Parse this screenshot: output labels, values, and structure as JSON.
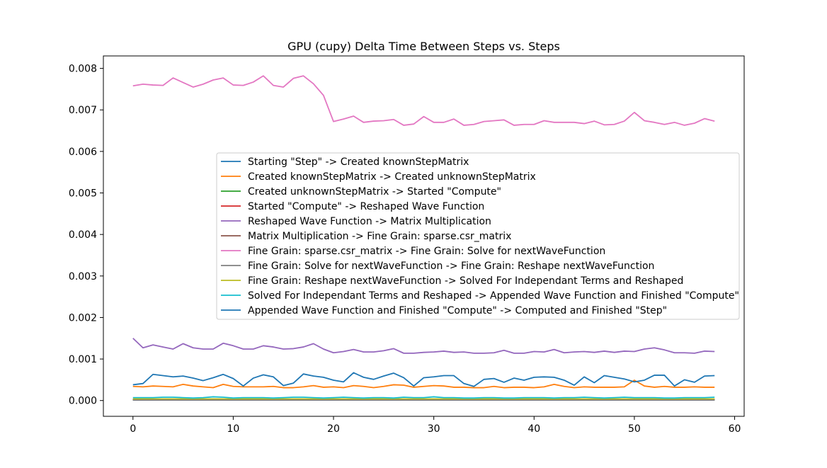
{
  "chart_data": {
    "type": "line",
    "title": "GPU (cupy) Delta Time Between Steps vs. Steps",
    "xlabel": "",
    "ylabel": "",
    "xlim": [
      -2.95,
      60.95
    ],
    "ylim": [
      -0.00038,
      0.0083
    ],
    "xticks": [
      0,
      10,
      20,
      30,
      40,
      50,
      60
    ],
    "yticks": [
      0.0,
      0.001,
      0.002,
      0.003,
      0.004,
      0.005,
      0.006,
      0.007,
      0.008
    ],
    "ytick_labels": [
      "0.000",
      "0.001",
      "0.002",
      "0.003",
      "0.004",
      "0.005",
      "0.006",
      "0.007",
      "0.008"
    ],
    "x": [
      0,
      1,
      2,
      3,
      4,
      5,
      6,
      7,
      8,
      9,
      10,
      11,
      12,
      13,
      14,
      15,
      16,
      17,
      18,
      19,
      20,
      21,
      22,
      23,
      24,
      25,
      26,
      27,
      28,
      29,
      30,
      31,
      32,
      33,
      34,
      35,
      36,
      37,
      38,
      39,
      40,
      41,
      42,
      43,
      44,
      45,
      46,
      47,
      48,
      49,
      50,
      51,
      52,
      53,
      54,
      55,
      56,
      57,
      58
    ],
    "legend_position": "center-right",
    "grid": false,
    "series": [
      {
        "name": "Starting \"Step\" -> Created knownStepMatrix",
        "color": "#1f77b4",
        "values": [
          2e-05,
          2e-05,
          2e-05,
          2e-05,
          2e-05,
          2e-05,
          2e-05,
          2e-05,
          2e-05,
          2e-05,
          2e-05,
          2e-05,
          2e-05,
          2e-05,
          2e-05,
          2e-05,
          2e-05,
          2e-05,
          2e-05,
          2e-05,
          2e-05,
          2e-05,
          2e-05,
          2e-05,
          2e-05,
          2e-05,
          2e-05,
          2e-05,
          2e-05,
          2e-05,
          2e-05,
          2e-05,
          2e-05,
          2e-05,
          2e-05,
          2e-05,
          2e-05,
          2e-05,
          2e-05,
          2e-05,
          2e-05,
          2e-05,
          2e-05,
          2e-05,
          2e-05,
          2e-05,
          2e-05,
          2e-05,
          2e-05,
          2e-05,
          2e-05,
          2e-05,
          2e-05,
          2e-05,
          2e-05,
          2e-05,
          2e-05,
          2e-05,
          2e-05
        ]
      },
      {
        "name": "Created knownStepMatrix -> Created unknownStepMatrix",
        "color": "#ff7f0e",
        "values": [
          0.00034,
          0.00033,
          0.00035,
          0.00034,
          0.00033,
          0.00039,
          0.00035,
          0.00033,
          0.00031,
          0.00039,
          0.00034,
          0.00033,
          0.00033,
          0.00033,
          0.00034,
          0.00031,
          0.00031,
          0.00033,
          0.00036,
          0.00032,
          0.00033,
          0.00031,
          0.00036,
          0.00034,
          0.00031,
          0.00034,
          0.00038,
          0.00037,
          0.00032,
          0.00034,
          0.00036,
          0.00035,
          0.00032,
          0.00032,
          0.00031,
          0.00031,
          0.00034,
          0.00031,
          0.00032,
          0.00032,
          0.00031,
          0.00033,
          0.00039,
          0.00034,
          0.00031,
          0.00033,
          0.00032,
          0.00032,
          0.00032,
          0.00033,
          0.00049,
          0.00035,
          0.00032,
          0.00034,
          0.00032,
          0.00032,
          0.00033,
          0.00032,
          0.00032
        ]
      },
      {
        "name": "Created unknownStepMatrix -> Started \"Compute\"",
        "color": "#2ca02c",
        "values": [
          1e-05,
          1e-05,
          1e-05,
          1e-05,
          1e-05,
          1e-05,
          1e-05,
          1e-05,
          1e-05,
          1e-05,
          1e-05,
          1e-05,
          1e-05,
          1e-05,
          1e-05,
          1e-05,
          1e-05,
          1e-05,
          1e-05,
          1e-05,
          1e-05,
          1e-05,
          1e-05,
          1e-05,
          1e-05,
          1e-05,
          1e-05,
          1e-05,
          1e-05,
          1e-05,
          1e-05,
          1e-05,
          1e-05,
          1e-05,
          1e-05,
          1e-05,
          1e-05,
          1e-05,
          1e-05,
          1e-05,
          1e-05,
          1e-05,
          1e-05,
          1e-05,
          1e-05,
          1e-05,
          1e-05,
          1e-05,
          1e-05,
          1e-05,
          1e-05,
          1e-05,
          1e-05,
          1e-05,
          1e-05,
          1e-05,
          1e-05,
          1e-05,
          1e-05
        ]
      },
      {
        "name": "Started \"Compute\" -> Reshaped Wave Function",
        "color": "#d62728",
        "values": [
          3e-05,
          3e-05,
          3e-05,
          3e-05,
          3e-05,
          3e-05,
          3e-05,
          3e-05,
          3e-05,
          3e-05,
          3e-05,
          3e-05,
          3e-05,
          3e-05,
          3e-05,
          3e-05,
          3e-05,
          3e-05,
          3e-05,
          3e-05,
          3e-05,
          3e-05,
          3e-05,
          3e-05,
          3e-05,
          3e-05,
          3e-05,
          3e-05,
          3e-05,
          3e-05,
          3e-05,
          3e-05,
          3e-05,
          3e-05,
          3e-05,
          3e-05,
          3e-05,
          3e-05,
          3e-05,
          3e-05,
          3e-05,
          3e-05,
          3e-05,
          3e-05,
          3e-05,
          3e-05,
          3e-05,
          3e-05,
          3e-05,
          3e-05,
          3e-05,
          3e-05,
          3e-05,
          3e-05,
          3e-05,
          3e-05,
          3e-05,
          3e-05,
          3e-05
        ]
      },
      {
        "name": "Reshaped Wave Function -> Matrix Multiplication",
        "color": "#9467bd",
        "values": [
          0.0015,
          0.00127,
          0.00134,
          0.00129,
          0.00124,
          0.00137,
          0.00127,
          0.00124,
          0.00124,
          0.00138,
          0.00132,
          0.00124,
          0.00124,
          0.00132,
          0.00129,
          0.00124,
          0.00125,
          0.00129,
          0.00137,
          0.00124,
          0.00115,
          0.00118,
          0.00123,
          0.00117,
          0.00117,
          0.0012,
          0.00125,
          0.00114,
          0.00114,
          0.00116,
          0.00117,
          0.00119,
          0.00116,
          0.00117,
          0.00114,
          0.00114,
          0.00115,
          0.00121,
          0.00114,
          0.00114,
          0.00118,
          0.00117,
          0.00123,
          0.00115,
          0.00117,
          0.00118,
          0.00116,
          0.00119,
          0.00116,
          0.00119,
          0.00118,
          0.00124,
          0.00127,
          0.00122,
          0.00115,
          0.00115,
          0.00114,
          0.00119,
          0.00118
        ]
      },
      {
        "name": "Matrix Multiplication -> Fine Grain: sparse.csr_matrix",
        "color": "#8c564b",
        "values": [
          2e-05,
          2e-05,
          2e-05,
          2e-05,
          2e-05,
          2e-05,
          2e-05,
          2e-05,
          2e-05,
          2e-05,
          2e-05,
          2e-05,
          2e-05,
          2e-05,
          2e-05,
          2e-05,
          2e-05,
          2e-05,
          2e-05,
          2e-05,
          2e-05,
          2e-05,
          2e-05,
          2e-05,
          2e-05,
          2e-05,
          2e-05,
          2e-05,
          2e-05,
          2e-05,
          2e-05,
          2e-05,
          2e-05,
          2e-05,
          2e-05,
          2e-05,
          2e-05,
          2e-05,
          2e-05,
          2e-05,
          2e-05,
          2e-05,
          2e-05,
          2e-05,
          2e-05,
          2e-05,
          2e-05,
          2e-05,
          2e-05,
          2e-05,
          2e-05,
          2e-05,
          2e-05,
          2e-05,
          2e-05,
          2e-05,
          2e-05,
          2e-05,
          2e-05
        ]
      },
      {
        "name": "Fine Grain: sparse.csr_matrix -> Fine Grain: Solve for nextWaveFunction",
        "color": "#e377c2",
        "values": [
          0.00758,
          0.00762,
          0.0076,
          0.00759,
          0.00777,
          0.00766,
          0.00755,
          0.00762,
          0.00772,
          0.00777,
          0.0076,
          0.00759,
          0.00767,
          0.00782,
          0.00759,
          0.00755,
          0.00776,
          0.00782,
          0.00763,
          0.00735,
          0.00672,
          0.00678,
          0.00685,
          0.0067,
          0.00673,
          0.00674,
          0.00677,
          0.00663,
          0.00666,
          0.00684,
          0.0067,
          0.0067,
          0.00678,
          0.00663,
          0.00665,
          0.00672,
          0.00674,
          0.00676,
          0.00663,
          0.00665,
          0.00665,
          0.00674,
          0.0067,
          0.0067,
          0.0067,
          0.00667,
          0.00673,
          0.00664,
          0.00665,
          0.00673,
          0.00694,
          0.00674,
          0.0067,
          0.00665,
          0.0067,
          0.00663,
          0.00668,
          0.00679,
          0.00673
        ]
      },
      {
        "name": "Fine Grain: Solve for nextWaveFunction -> Fine Grain: Reshape nextWaveFunction",
        "color": "#7f7f7f",
        "values": [
          1e-05,
          1e-05,
          1e-05,
          1e-05,
          1e-05,
          1e-05,
          1e-05,
          1e-05,
          1e-05,
          1e-05,
          1e-05,
          1e-05,
          1e-05,
          1e-05,
          1e-05,
          1e-05,
          1e-05,
          1e-05,
          1e-05,
          1e-05,
          1e-05,
          1e-05,
          1e-05,
          1e-05,
          1e-05,
          1e-05,
          1e-05,
          1e-05,
          1e-05,
          1e-05,
          1e-05,
          1e-05,
          1e-05,
          1e-05,
          1e-05,
          1e-05,
          1e-05,
          1e-05,
          1e-05,
          1e-05,
          1e-05,
          1e-05,
          1e-05,
          1e-05,
          1e-05,
          1e-05,
          1e-05,
          1e-05,
          1e-05,
          1e-05,
          1e-05,
          1e-05,
          1e-05,
          1e-05,
          1e-05,
          1e-05,
          1e-05,
          1e-05,
          1e-05
        ]
      },
      {
        "name": "Fine Grain: Reshape nextWaveFunction -> Solved For Independant Terms and Reshaped",
        "color": "#bcbd22",
        "values": [
          4e-05,
          4e-05,
          4e-05,
          4e-05,
          4e-05,
          4e-05,
          4e-05,
          4e-05,
          4e-05,
          4e-05,
          4e-05,
          4e-05,
          4e-05,
          4e-05,
          4e-05,
          4e-05,
          4e-05,
          4e-05,
          4e-05,
          4e-05,
          4e-05,
          4e-05,
          4e-05,
          4e-05,
          4e-05,
          4e-05,
          4e-05,
          4e-05,
          4e-05,
          4e-05,
          4e-05,
          4e-05,
          4e-05,
          4e-05,
          4e-05,
          4e-05,
          4e-05,
          4e-05,
          4e-05,
          4e-05,
          4e-05,
          4e-05,
          4e-05,
          4e-05,
          4e-05,
          4e-05,
          4e-05,
          4e-05,
          4e-05,
          4e-05,
          4e-05,
          4e-05,
          4e-05,
          4e-05,
          4e-05,
          4e-05,
          4e-05,
          4e-05,
          4e-05
        ]
      },
      {
        "name": "Solved For Independant Terms and Reshaped -> Appended Wave Function and Finished \"Compute\"",
        "color": "#17becf",
        "values": [
          7e-05,
          7e-05,
          7e-05,
          8e-05,
          8e-05,
          7e-05,
          6e-05,
          7e-05,
          9e-05,
          8e-05,
          6e-05,
          7e-05,
          7e-05,
          7e-05,
          6e-05,
          7e-05,
          8e-05,
          8e-05,
          7e-05,
          6e-05,
          7e-05,
          8e-05,
          7e-05,
          6e-05,
          7e-05,
          7e-05,
          6e-05,
          8e-05,
          7e-05,
          7e-05,
          9e-05,
          7e-05,
          7e-05,
          6e-05,
          6e-05,
          7e-05,
          7e-05,
          6e-05,
          6e-05,
          7e-05,
          7e-05,
          7e-05,
          6e-05,
          7e-05,
          7e-05,
          8e-05,
          7e-05,
          6e-05,
          7e-05,
          8e-05,
          7e-05,
          7e-05,
          7e-05,
          6e-05,
          6e-05,
          7e-05,
          7e-05,
          7e-05,
          8e-05
        ]
      },
      {
        "name": "Appended Wave Function and Finished \"Compute\" -> Computed and Finished \"Step\"",
        "color": "#1f77b4",
        "values": [
          0.00038,
          0.00041,
          0.00063,
          0.0006,
          0.00057,
          0.00059,
          0.00054,
          0.00048,
          0.00055,
          0.00063,
          0.00053,
          0.00035,
          0.00054,
          0.00062,
          0.00057,
          0.00036,
          0.00042,
          0.00064,
          0.00059,
          0.00056,
          0.00049,
          0.00045,
          0.00067,
          0.00056,
          0.00051,
          0.00059,
          0.00066,
          0.00055,
          0.00035,
          0.00055,
          0.00057,
          0.0006,
          0.0006,
          0.00041,
          0.00034,
          0.00051,
          0.00053,
          0.00044,
          0.00054,
          0.00049,
          0.00056,
          0.00057,
          0.00056,
          0.00049,
          0.00037,
          0.00057,
          0.00043,
          0.0006,
          0.00056,
          0.00052,
          0.00045,
          0.00049,
          0.00061,
          0.00061,
          0.00035,
          0.0005,
          0.00044,
          0.00059,
          0.0006
        ]
      }
    ]
  }
}
